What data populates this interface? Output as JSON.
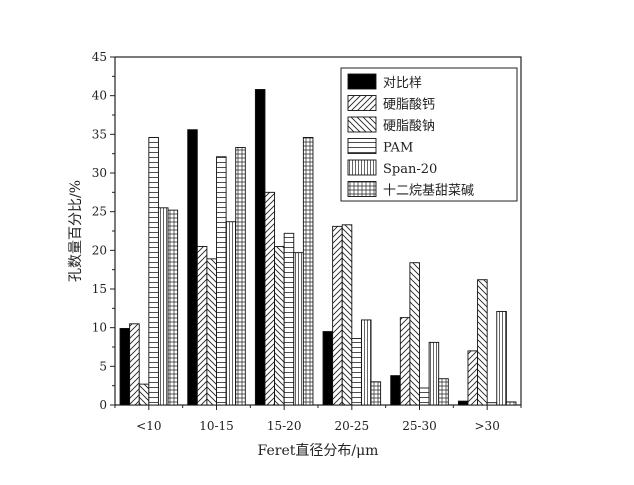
{
  "chart_data": {
    "type": "bar",
    "title": "",
    "xlabel": "Feret直径分布/μm",
    "ylabel": "孔数量百分比/%",
    "ylim": [
      0,
      45
    ],
    "yticks": [
      0,
      5,
      10,
      15,
      20,
      25,
      30,
      35,
      40,
      45
    ],
    "categories": [
      "<10",
      "10-15",
      "15-20",
      "20-25",
      "25-30",
      ">30"
    ],
    "legend_position": "top-right",
    "grid": false,
    "series": [
      {
        "name": "对比样",
        "pattern": "solid-black",
        "values": [
          9.9,
          35.6,
          40.8,
          9.5,
          3.8,
          0.5
        ]
      },
      {
        "name": "硬脂酸钙",
        "pattern": "diagonal-right",
        "values": [
          10.5,
          20.5,
          27.5,
          23.1,
          11.3,
          7.0
        ]
      },
      {
        "name": "硬脂酸钠",
        "pattern": "diagonal-left",
        "values": [
          2.7,
          18.9,
          20.5,
          23.3,
          18.4,
          16.2
        ]
      },
      {
        "name": "PAM",
        "pattern": "horizontal",
        "values": [
          34.6,
          32.1,
          22.2,
          8.6,
          2.2,
          0.3
        ]
      },
      {
        "name": "Span-20",
        "pattern": "vertical",
        "values": [
          25.5,
          23.7,
          19.7,
          11.0,
          8.1,
          12.1
        ]
      },
      {
        "name": "十二烷基甜菜碱",
        "pattern": "grid",
        "values": [
          25.2,
          33.3,
          34.6,
          3.0,
          3.4,
          0.4
        ]
      }
    ]
  }
}
